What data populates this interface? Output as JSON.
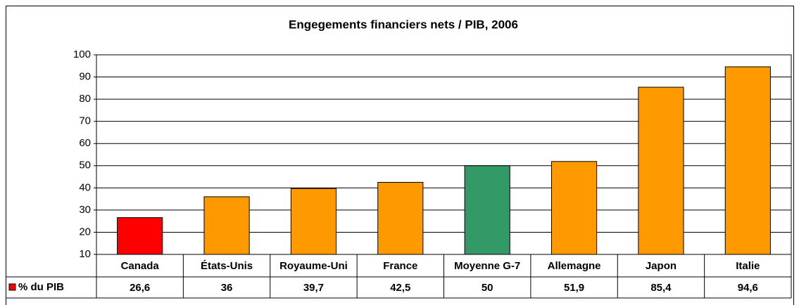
{
  "chart_data": {
    "type": "bar",
    "title": "Engegements financiers nets / PIB, 2006",
    "categories": [
      "Canada",
      "États-Unis",
      "Royaume-Uni",
      "France",
      "Moyenne G-7",
      "Allemagne",
      "Japon",
      "Italie"
    ],
    "series_name": "% du PIB",
    "values": [
      26.6,
      36,
      39.7,
      42.5,
      50,
      51.9,
      85.4,
      94.6
    ],
    "value_labels": [
      "26,6",
      "36",
      "39,7",
      "42,5",
      "50",
      "51,9",
      "85,4",
      "94,6"
    ],
    "colors": [
      "#ff0000",
      "#ff9900",
      "#ff9900",
      "#ff9900",
      "#339966",
      "#ff9900",
      "#ff9900",
      "#ff9900"
    ],
    "legend_color": "#ff0000",
    "ylim": [
      10,
      100
    ],
    "yticks": [
      10,
      20,
      30,
      40,
      50,
      60,
      70,
      80,
      90,
      100
    ],
    "grid": true
  }
}
